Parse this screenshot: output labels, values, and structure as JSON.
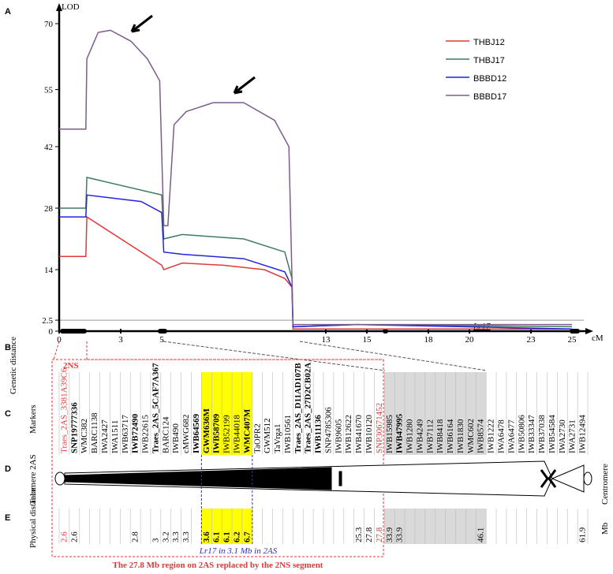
{
  "chart_data": {
    "type": "line",
    "y_label": "LOD",
    "x_label": "cM",
    "xlim": [
      0,
      25
    ],
    "ylim": [
      0,
      70
    ],
    "xticks": [
      0,
      3,
      5,
      13,
      15,
      18,
      20,
      23,
      25
    ],
    "yticks": [
      0,
      2.5,
      14,
      28,
      42,
      55,
      70
    ],
    "threshold": 2.5,
    "annotation": "Lr17",
    "legend": "top-right",
    "series": [
      {
        "name": "THBJ12",
        "color": "#e03a3a",
        "x": [
          0,
          1.3,
          1.35,
          5,
          5.1,
          6,
          8,
          10,
          11,
          11.35,
          11.4,
          25
        ],
        "values": [
          17,
          17,
          26,
          15,
          14,
          15.5,
          15,
          14,
          12,
          10,
          0.5,
          0.5
        ]
      },
      {
        "name": "THBJ17",
        "color": "#3f7d5e",
        "x": [
          0,
          1.3,
          1.35,
          5,
          5.1,
          6,
          9,
          11,
          11.35,
          11.4,
          14.5,
          25
        ],
        "values": [
          28,
          28,
          35,
          31,
          21,
          22,
          21,
          18,
          12,
          1,
          1.5,
          1
        ]
      },
      {
        "name": "BBBD12",
        "color": "#2424e0",
        "x": [
          0,
          1.3,
          1.35,
          4,
          5,
          5.1,
          6,
          9,
          11,
          11.35,
          11.4,
          14.5,
          25
        ],
        "values": [
          26,
          26,
          31,
          29.5,
          27,
          18,
          17.5,
          16.5,
          13.5,
          10,
          1,
          1.5,
          0.5
        ]
      },
      {
        "name": "BBBD17",
        "color": "#7d5c8c",
        "x": [
          0,
          1.3,
          1.35,
          1.9,
          2.5,
          3.5,
          4.3,
          4.9,
          5.1,
          5.3,
          5.6,
          6.2,
          7.5,
          9,
          10.5,
          11.2,
          11.35,
          11.4,
          14.5,
          25
        ],
        "values": [
          46,
          46,
          62,
          68,
          68.5,
          66,
          62,
          57,
          24,
          24,
          47,
          50,
          52,
          52,
          48,
          42,
          12,
          1.5,
          1.5,
          1.5
        ]
      }
    ]
  },
  "panels": {
    "a": "A",
    "b": "B",
    "c": "C",
    "d": "D",
    "e": "E"
  },
  "labels": {
    "genetic_distance": "Genetic distance",
    "markers": "Markers",
    "telomere": "Telomere 2AS",
    "physical_distance": "Physical distance",
    "centromere": "Centromere",
    "mb": "Mb",
    "segment": "2NS",
    "lr17_note": "Lr17 in 3.1 Mb in 2AS",
    "region_note": "The 27.8 Mb region on 2AS replaced by the 2NS segment"
  },
  "highlight": {
    "yellow": [
      14,
      18
    ],
    "gray": [
      32,
      41
    ]
  },
  "markers": [
    {
      "name": "Traes_2AS_3381A39C6",
      "color": "#e03a3a"
    },
    {
      "name": "SNP19777336",
      "bold": true
    },
    {
      "name": "WMC382"
    },
    {
      "name": "BARC1138"
    },
    {
      "name": "IWA2427"
    },
    {
      "name": "IWA1511"
    },
    {
      "name": "IWB63717"
    },
    {
      "name": "IWB72490",
      "bold": true
    },
    {
      "name": "IWB22615"
    },
    {
      "name": "Traes_2AS_5CAF7A367",
      "bold": true
    },
    {
      "name": "BARC124"
    },
    {
      "name": "IWB490"
    },
    {
      "name": "cMWG682"
    },
    {
      "name": "IWB64569",
      "bold": true
    },
    {
      "name": "GWM636M",
      "bold": true
    },
    {
      "name": "IWB58709",
      "bold": true
    },
    {
      "name": "IWB52199"
    },
    {
      "name": "IWB44018"
    },
    {
      "name": "WMC407M",
      "bold": true
    },
    {
      "name": "TaOPR2"
    },
    {
      "name": "GWM512"
    },
    {
      "name": "TaVrga1"
    },
    {
      "name": "IWB10561"
    },
    {
      "name": "Traes_2AS_D11AD107B",
      "bold": true
    },
    {
      "name": "Traes_2AS_27D2CB02A",
      "bold": true
    },
    {
      "name": "IWB11136",
      "bold": true
    },
    {
      "name": "SNP4785306"
    },
    {
      "name": "IWB9605"
    },
    {
      "name": "IWB12622"
    },
    {
      "name": "IWB41670"
    },
    {
      "name": "IWB10120"
    },
    {
      "name": "SNP30671452",
      "color": "#e03a3a"
    },
    {
      "name": "IWB15985"
    },
    {
      "name": "IWB47995",
      "bold": true
    },
    {
      "name": "IWB1280"
    },
    {
      "name": "IWB4249"
    },
    {
      "name": "IWB7112"
    },
    {
      "name": "IWB8418"
    },
    {
      "name": "IWB6164"
    },
    {
      "name": "IWB1830"
    },
    {
      "name": "WMC602"
    },
    {
      "name": "IWB8574"
    },
    {
      "name": "IWB1222"
    },
    {
      "name": "IWA6478"
    },
    {
      "name": "IWA6477"
    },
    {
      "name": "IWB50806"
    },
    {
      "name": "IWB33347"
    },
    {
      "name": "IWB37038"
    },
    {
      "name": "IWB54584"
    },
    {
      "name": "IWA2730"
    },
    {
      "name": "IWA2731"
    },
    {
      "name": "IWB12494"
    }
  ],
  "physical_distance": [
    2.6,
    2.6,
    null,
    null,
    null,
    null,
    null,
    2.8,
    null,
    3,
    3.2,
    3.3,
    3.3,
    null,
    3.6,
    6.1,
    6.1,
    6.2,
    6.7,
    null,
    null,
    null,
    null,
    null,
    null,
    null,
    null,
    null,
    null,
    25.3,
    27.8,
    27.8,
    33.9,
    33.9,
    null,
    null,
    null,
    null,
    null,
    null,
    null,
    46.1,
    null,
    null,
    null,
    null,
    null,
    null,
    null,
    null,
    null,
    61.9
  ]
}
